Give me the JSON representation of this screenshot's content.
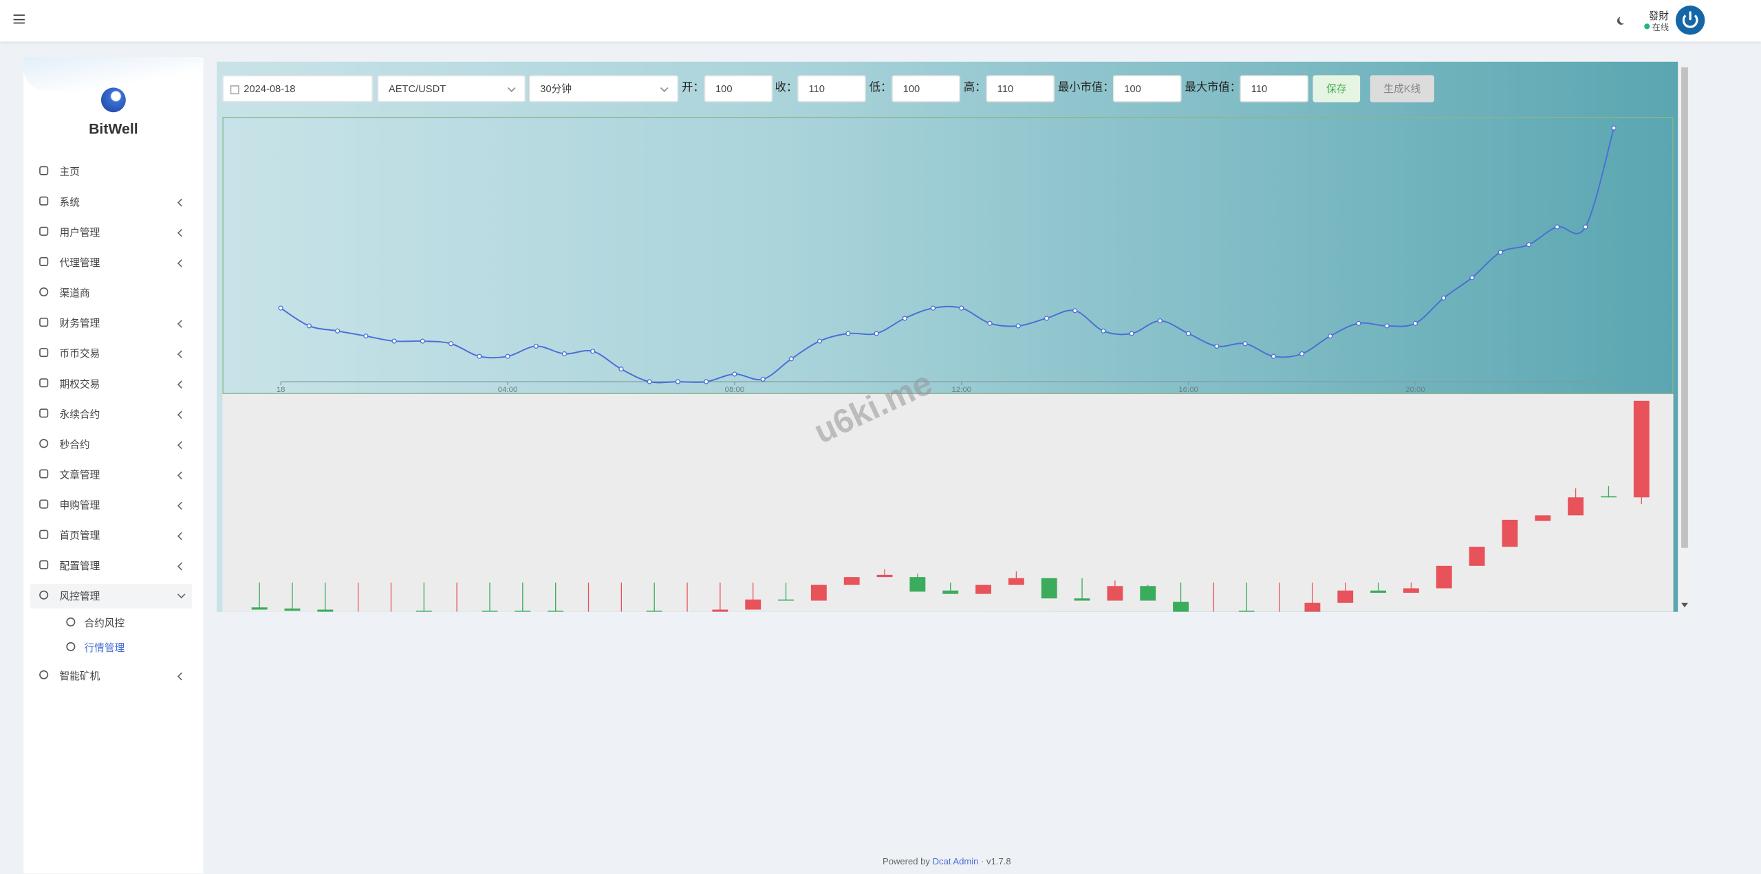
{
  "header": {
    "user_name": "發財",
    "status": "在线"
  },
  "sidebar": {
    "brand": "BitWell",
    "menu": [
      {
        "label": "主页",
        "submenu": false
      },
      {
        "label": "系统",
        "submenu": true
      },
      {
        "label": "用户管理",
        "submenu": true
      },
      {
        "label": "代理管理",
        "submenu": true
      },
      {
        "label": "渠道商",
        "submenu": false
      },
      {
        "label": "财务管理",
        "submenu": true
      },
      {
        "label": "币币交易",
        "submenu": true
      },
      {
        "label": "期权交易",
        "submenu": true
      },
      {
        "label": "永续合约",
        "submenu": true
      },
      {
        "label": "秒合约",
        "submenu": true
      },
      {
        "label": "文章管理",
        "submenu": true
      },
      {
        "label": "申购管理",
        "submenu": true
      },
      {
        "label": "首页管理",
        "submenu": true
      },
      {
        "label": "配置管理",
        "submenu": true
      },
      {
        "label": "风控管理",
        "submenu": true,
        "expanded": true,
        "children": [
          {
            "label": "合约风控",
            "active": false
          },
          {
            "label": "行情管理",
            "active": true
          }
        ]
      },
      {
        "label": "智能矿机",
        "submenu": true
      }
    ]
  },
  "form": {
    "date": "2024-08-18",
    "pair": "AETC/USDT",
    "interval": "30分钟",
    "fields": [
      {
        "label": "开：",
        "value": 100
      },
      {
        "label": "收：",
        "value": 110
      },
      {
        "label": "低：",
        "value": 100
      },
      {
        "label": "高：",
        "value": 110
      },
      {
        "label": "最小市值：",
        "value": 100
      },
      {
        "label": "最大市值：",
        "value": 110
      }
    ],
    "buttons": [
      "保存",
      "生成K线"
    ]
  },
  "watermark": "u6ki.me",
  "chart_data": [
    {
      "type": "line",
      "color": "#4a6fd6",
      "categories": [
        "18",
        null,
        null,
        null,
        null,
        null,
        null,
        null,
        "04:00",
        null,
        null,
        null,
        null,
        null,
        null,
        null,
        "08:00",
        null,
        null,
        null,
        null,
        null,
        null,
        null,
        "12:00",
        null,
        null,
        null,
        null,
        null,
        null,
        null,
        "16:00",
        null,
        null,
        null,
        null,
        null,
        null,
        null,
        "20:00",
        null,
        null,
        null,
        null,
        null,
        null,
        null
      ],
      "values": [
        102.9,
        102.2,
        102.0,
        101.8,
        101.6,
        101.6,
        101.5,
        101.0,
        101.0,
        101.4,
        101.1,
        101.2,
        100.5,
        100.0,
        100.0,
        100.0,
        100.3,
        100.1,
        100.9,
        101.6,
        101.9,
        101.9,
        102.5,
        102.9,
        102.9,
        102.3,
        102.2,
        102.5,
        102.8,
        102.0,
        101.9,
        102.4,
        101.9,
        101.4,
        101.5,
        101.0,
        101.1,
        101.8,
        102.3,
        102.2,
        102.3,
        103.3,
        104.1,
        105.1,
        105.4,
        106.1,
        106.1,
        110.0
      ],
      "ylim": [
        100,
        110
      ]
    },
    {
      "type": "candlestick",
      "up_color": "#e8525a",
      "down_color": "#3bab5c",
      "open": [
        4,
        3,
        2,
        0,
        0,
        1,
        0,
        1,
        1,
        1,
        0,
        0,
        1,
        0,
        0,
        2,
        11,
        10,
        24,
        31,
        31,
        19,
        16,
        24,
        30,
        12,
        10,
        23,
        9,
        0,
        1,
        0,
        0,
        8,
        19,
        17,
        21,
        41,
        58,
        81,
        86,
        103,
        102
      ],
      "close": [
        2,
        1,
        0,
        0,
        0,
        0,
        0,
        0,
        0,
        0,
        0,
        0,
        0,
        0,
        2,
        11,
        10,
        24,
        31,
        33,
        18,
        16,
        24,
        30,
        12,
        10,
        23,
        10,
        0,
        0,
        0,
        0,
        8,
        19,
        17,
        21,
        41,
        58,
        82,
        86,
        102,
        102,
        188
      ],
      "high": [
        26,
        26,
        26,
        26,
        26,
        26,
        26,
        26,
        26,
        26,
        26,
        26,
        26,
        26,
        26,
        26,
        26,
        24,
        31,
        38,
        34,
        26,
        24,
        36,
        30,
        30,
        28,
        24,
        26,
        26,
        26,
        26,
        26,
        26,
        26,
        26,
        41,
        58,
        82,
        86,
        110,
        112,
        188
      ],
      "low": [
        2,
        1,
        0,
        0,
        0,
        0,
        0,
        0,
        0,
        0,
        0,
        0,
        0,
        0,
        0,
        2,
        10,
        10,
        24,
        31,
        18,
        16,
        16,
        24,
        12,
        10,
        10,
        10,
        0,
        0,
        0,
        0,
        0,
        8,
        17,
        17,
        21,
        41,
        58,
        81,
        86,
        102,
        96
      ],
      "ylim": [
        0,
        195
      ]
    }
  ],
  "footer": {
    "powered_by": "Powered by",
    "link": "Dcat Admin",
    "separator": "·",
    "version": "v1.7.8"
  }
}
